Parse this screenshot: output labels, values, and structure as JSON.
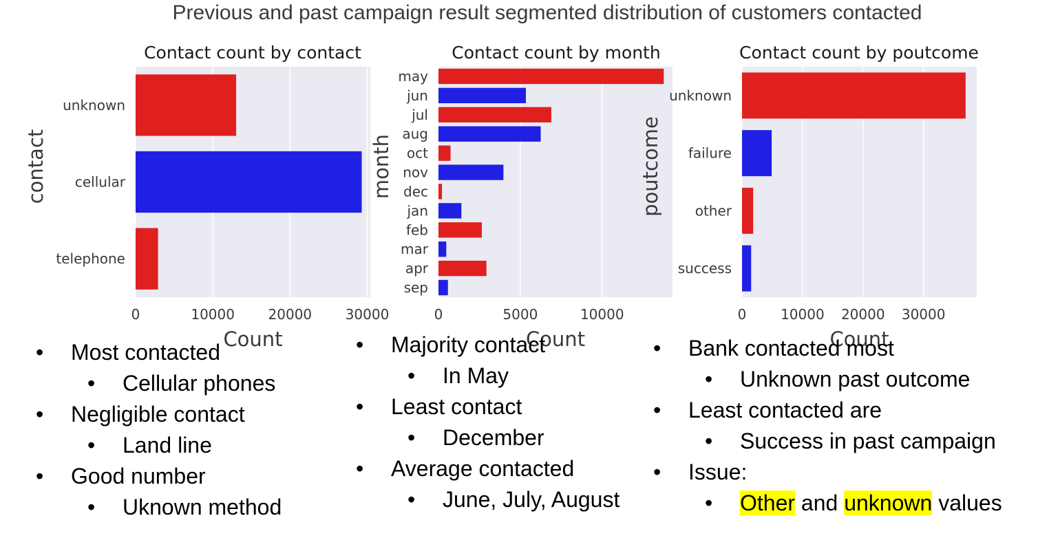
{
  "page": {
    "title": "Previous and past campaign result segmented distribution of customers contacted"
  },
  "colors": {
    "red": "#e0201f",
    "blue": "#2020e4"
  },
  "chart_data": [
    {
      "type": "bar",
      "orientation": "horizontal",
      "title": "Contact count by contact",
      "xlabel": "Count",
      "ylabel": "contact",
      "categories": [
        "unknown",
        "cellular",
        "telephone"
      ],
      "values": [
        13020,
        29285,
        2906
      ],
      "bar_colors": [
        "red",
        "blue",
        "red"
      ],
      "xlim": [
        0,
        30400
      ],
      "xticks": [
        0,
        10000,
        20000,
        30000
      ],
      "grid": true
    },
    {
      "type": "bar",
      "orientation": "horizontal",
      "title": "Contact count by month",
      "xlabel": "Count",
      "ylabel": "month",
      "categories": [
        "may",
        "jun",
        "jul",
        "aug",
        "oct",
        "nov",
        "dec",
        "jan",
        "feb",
        "mar",
        "apr",
        "sep"
      ],
      "values": [
        13766,
        5341,
        6895,
        6247,
        738,
        3970,
        214,
        1403,
        2649,
        477,
        2932,
        579
      ],
      "bar_colors": [
        "red",
        "blue",
        "red",
        "blue",
        "red",
        "blue",
        "red",
        "blue",
        "red",
        "blue",
        "red",
        "blue"
      ],
      "xlim": [
        0,
        14300
      ],
      "xticks": [
        0,
        5000,
        10000
      ],
      "grid": true
    },
    {
      "type": "bar",
      "orientation": "horizontal",
      "title": "Contact count by poutcome",
      "xlabel": "Count",
      "ylabel": "poutcome",
      "categories": [
        "unknown",
        "failure",
        "other",
        "success"
      ],
      "values": [
        36959,
        4901,
        1840,
        1511
      ],
      "bar_colors": [
        "red",
        "blue",
        "red",
        "blue"
      ],
      "xlim": [
        0,
        38800
      ],
      "xticks": [
        0,
        10000,
        20000,
        30000
      ],
      "grid": true
    }
  ],
  "notes": [
    {
      "items": [
        {
          "level": 1,
          "text": "Most contacted"
        },
        {
          "level": 2,
          "text": "Cellular phones"
        },
        {
          "level": 1,
          "text": "Negligible contact"
        },
        {
          "level": 2,
          "text": "Land line"
        },
        {
          "level": 1,
          "text": "Good number"
        },
        {
          "level": 2,
          "text": "Uknown method"
        }
      ]
    },
    {
      "items": [
        {
          "level": 1,
          "text": "Majority contact"
        },
        {
          "level": 2,
          "text": "In May"
        },
        {
          "level": 1,
          "text": "Least contact"
        },
        {
          "level": 2,
          "text": "December"
        },
        {
          "level": 1,
          "text": "Average contacted"
        },
        {
          "level": 2,
          "text": "June, July, August"
        }
      ]
    },
    {
      "items": [
        {
          "level": 1,
          "text": "Bank contacted most"
        },
        {
          "level": 2,
          "text": "Unknown past outcome"
        },
        {
          "level": 1,
          "text": "Least contacted are"
        },
        {
          "level": 2,
          "text": "Success in past campaign"
        },
        {
          "level": 1,
          "text": "Issue:"
        },
        {
          "level": 2,
          "parts": [
            {
              "text": "Other",
              "highlight": true
            },
            {
              "text": " and ",
              "highlight": false
            },
            {
              "text": "unknown",
              "highlight": true
            },
            {
              "text": " values",
              "highlight": false
            }
          ]
        }
      ]
    }
  ],
  "bullet_glyph": "•"
}
